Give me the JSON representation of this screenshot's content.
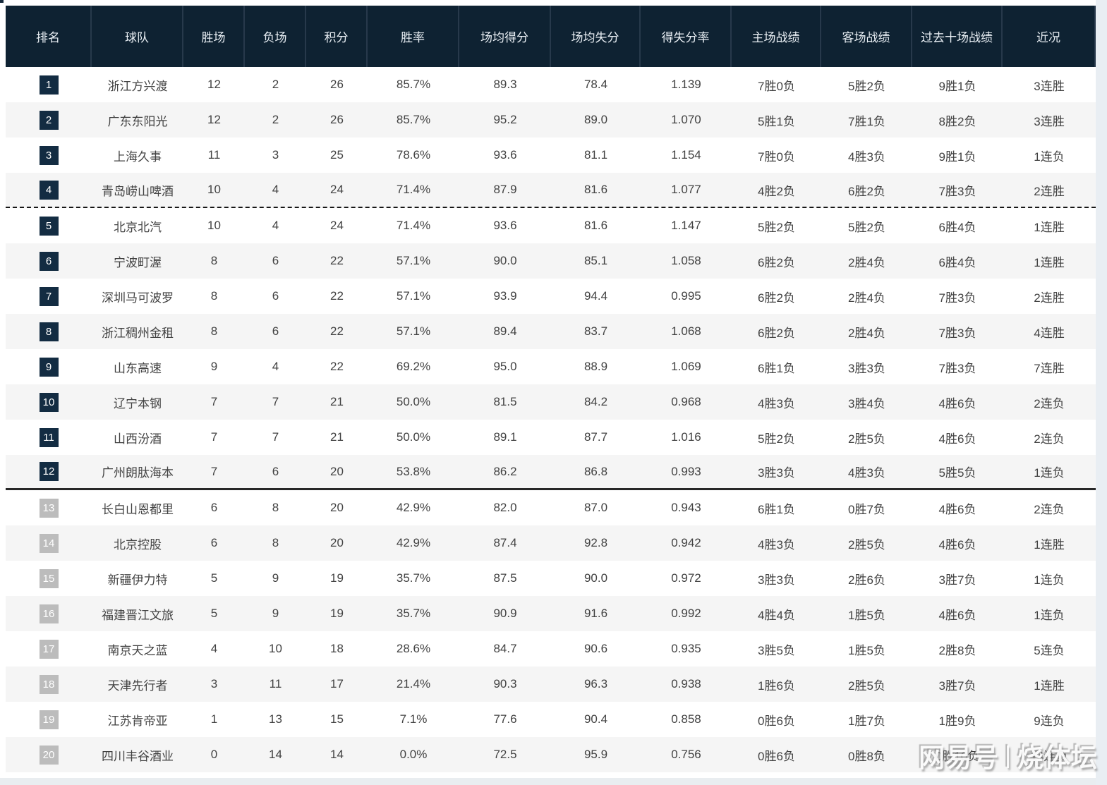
{
  "watermark": {
    "left": "网易号",
    "separator": "|",
    "right": "烧体坛"
  },
  "table": {
    "headers": {
      "rank": "排名",
      "team": "球队",
      "wins": "胜场",
      "losses": "负场",
      "points": "积分",
      "win_rate": "胜率",
      "avg_points_for": "场均得分",
      "avg_points_against": "场均失分",
      "points_ratio": "得失分率",
      "home_record": "主场战绩",
      "away_record": "客场战绩",
      "last_ten_record": "过去十场战绩",
      "recent_form": "近况"
    },
    "colors": {
      "header_bg": "#0e2232",
      "header_divider": "#27394b",
      "badge_dark": "#132c42",
      "badge_gray": "#bcbcbc",
      "row_alt_bg": "#f5f5f5",
      "text": "#424242"
    },
    "separators": {
      "dashed_after_rank": 4,
      "solid_after_rank": 12,
      "gray_badge_from_rank": 13
    },
    "rows": [
      {
        "rank": "1",
        "team": "浙江方兴渡",
        "wins": "12",
        "losses": "2",
        "points": "26",
        "win_rate": "85.7%",
        "avg_points_for": "89.3",
        "avg_points_against": "78.4",
        "points_ratio": "1.139",
        "home_record": "7胜0负",
        "away_record": "5胜2负",
        "last_ten_record": "9胜1负",
        "recent_form": "3连胜"
      },
      {
        "rank": "2",
        "team": "广东东阳光",
        "wins": "12",
        "losses": "2",
        "points": "26",
        "win_rate": "85.7%",
        "avg_points_for": "95.2",
        "avg_points_against": "89.0",
        "points_ratio": "1.070",
        "home_record": "5胜1负",
        "away_record": "7胜1负",
        "last_ten_record": "8胜2负",
        "recent_form": "3连胜"
      },
      {
        "rank": "3",
        "team": "上海久事",
        "wins": "11",
        "losses": "3",
        "points": "25",
        "win_rate": "78.6%",
        "avg_points_for": "93.6",
        "avg_points_against": "81.1",
        "points_ratio": "1.154",
        "home_record": "7胜0负",
        "away_record": "4胜3负",
        "last_ten_record": "9胜1负",
        "recent_form": "1连负"
      },
      {
        "rank": "4",
        "team": "青岛崂山啤酒",
        "wins": "10",
        "losses": "4",
        "points": "24",
        "win_rate": "71.4%",
        "avg_points_for": "87.9",
        "avg_points_against": "81.6",
        "points_ratio": "1.077",
        "home_record": "4胜2负",
        "away_record": "6胜2负",
        "last_ten_record": "7胜3负",
        "recent_form": "2连胜"
      },
      {
        "rank": "5",
        "team": "北京北汽",
        "wins": "10",
        "losses": "4",
        "points": "24",
        "win_rate": "71.4%",
        "avg_points_for": "93.6",
        "avg_points_against": "81.6",
        "points_ratio": "1.147",
        "home_record": "5胜2负",
        "away_record": "5胜2负",
        "last_ten_record": "6胜4负",
        "recent_form": "1连胜"
      },
      {
        "rank": "6",
        "team": "宁波町渥",
        "wins": "8",
        "losses": "6",
        "points": "22",
        "win_rate": "57.1%",
        "avg_points_for": "90.0",
        "avg_points_against": "85.1",
        "points_ratio": "1.058",
        "home_record": "6胜2负",
        "away_record": "2胜4负",
        "last_ten_record": "6胜4负",
        "recent_form": "1连胜"
      },
      {
        "rank": "7",
        "team": "深圳马可波罗",
        "wins": "8",
        "losses": "6",
        "points": "22",
        "win_rate": "57.1%",
        "avg_points_for": "93.9",
        "avg_points_against": "94.4",
        "points_ratio": "0.995",
        "home_record": "6胜2负",
        "away_record": "2胜4负",
        "last_ten_record": "7胜3负",
        "recent_form": "2连胜"
      },
      {
        "rank": "8",
        "team": "浙江稠州金租",
        "wins": "8",
        "losses": "6",
        "points": "22",
        "win_rate": "57.1%",
        "avg_points_for": "89.4",
        "avg_points_against": "83.7",
        "points_ratio": "1.068",
        "home_record": "6胜2负",
        "away_record": "2胜4负",
        "last_ten_record": "7胜3负",
        "recent_form": "4连胜"
      },
      {
        "rank": "9",
        "team": "山东高速",
        "wins": "9",
        "losses": "4",
        "points": "22",
        "win_rate": "69.2%",
        "avg_points_for": "95.0",
        "avg_points_against": "88.9",
        "points_ratio": "1.069",
        "home_record": "6胜1负",
        "away_record": "3胜3负",
        "last_ten_record": "7胜3负",
        "recent_form": "7连胜"
      },
      {
        "rank": "10",
        "team": "辽宁本钢",
        "wins": "7",
        "losses": "7",
        "points": "21",
        "win_rate": "50.0%",
        "avg_points_for": "81.5",
        "avg_points_against": "84.2",
        "points_ratio": "0.968",
        "home_record": "4胜3负",
        "away_record": "3胜4负",
        "last_ten_record": "4胜6负",
        "recent_form": "2连负"
      },
      {
        "rank": "11",
        "team": "山西汾酒",
        "wins": "7",
        "losses": "7",
        "points": "21",
        "win_rate": "50.0%",
        "avg_points_for": "89.1",
        "avg_points_against": "87.7",
        "points_ratio": "1.016",
        "home_record": "5胜2负",
        "away_record": "2胜5负",
        "last_ten_record": "4胜6负",
        "recent_form": "2连负"
      },
      {
        "rank": "12",
        "team": "广州朗肽海本",
        "wins": "7",
        "losses": "6",
        "points": "20",
        "win_rate": "53.8%",
        "avg_points_for": "86.2",
        "avg_points_against": "86.8",
        "points_ratio": "0.993",
        "home_record": "3胜3负",
        "away_record": "4胜3负",
        "last_ten_record": "5胜5负",
        "recent_form": "1连负"
      },
      {
        "rank": "13",
        "team": "长白山恩都里",
        "wins": "6",
        "losses": "8",
        "points": "20",
        "win_rate": "42.9%",
        "avg_points_for": "82.0",
        "avg_points_against": "87.0",
        "points_ratio": "0.943",
        "home_record": "6胜1负",
        "away_record": "0胜7负",
        "last_ten_record": "4胜6负",
        "recent_form": "2连负"
      },
      {
        "rank": "14",
        "team": "北京控股",
        "wins": "6",
        "losses": "8",
        "points": "20",
        "win_rate": "42.9%",
        "avg_points_for": "87.4",
        "avg_points_against": "92.8",
        "points_ratio": "0.942",
        "home_record": "4胜3负",
        "away_record": "2胜5负",
        "last_ten_record": "4胜6负",
        "recent_form": "1连胜"
      },
      {
        "rank": "15",
        "team": "新疆伊力特",
        "wins": "5",
        "losses": "9",
        "points": "19",
        "win_rate": "35.7%",
        "avg_points_for": "87.5",
        "avg_points_against": "90.0",
        "points_ratio": "0.972",
        "home_record": "3胜3负",
        "away_record": "2胜6负",
        "last_ten_record": "3胜7负",
        "recent_form": "1连负"
      },
      {
        "rank": "16",
        "team": "福建晋江文旅",
        "wins": "5",
        "losses": "9",
        "points": "19",
        "win_rate": "35.7%",
        "avg_points_for": "90.9",
        "avg_points_against": "91.6",
        "points_ratio": "0.992",
        "home_record": "4胜4负",
        "away_record": "1胜5负",
        "last_ten_record": "4胜6负",
        "recent_form": "1连负"
      },
      {
        "rank": "17",
        "team": "南京天之蓝",
        "wins": "4",
        "losses": "10",
        "points": "18",
        "win_rate": "28.6%",
        "avg_points_for": "84.7",
        "avg_points_against": "90.6",
        "points_ratio": "0.935",
        "home_record": "3胜5负",
        "away_record": "1胜5负",
        "last_ten_record": "2胜8负",
        "recent_form": "5连负"
      },
      {
        "rank": "18",
        "team": "天津先行者",
        "wins": "3",
        "losses": "11",
        "points": "17",
        "win_rate": "21.4%",
        "avg_points_for": "90.3",
        "avg_points_against": "96.3",
        "points_ratio": "0.938",
        "home_record": "1胜6负",
        "away_record": "2胜5负",
        "last_ten_record": "3胜7负",
        "recent_form": "1连胜"
      },
      {
        "rank": "19",
        "team": "江苏肯帝亚",
        "wins": "1",
        "losses": "13",
        "points": "15",
        "win_rate": "7.1%",
        "avg_points_for": "77.6",
        "avg_points_against": "90.4",
        "points_ratio": "0.858",
        "home_record": "0胜6负",
        "away_record": "1胜7负",
        "last_ten_record": "1胜9负",
        "recent_form": "9连负"
      },
      {
        "rank": "20",
        "team": "四川丰谷酒业",
        "wins": "0",
        "losses": "14",
        "points": "14",
        "win_rate": "0.0%",
        "avg_points_for": "72.5",
        "avg_points_against": "95.9",
        "points_ratio": "0.756",
        "home_record": "0胜6负",
        "away_record": "0胜8负",
        "last_ten_record": "0胜10负",
        "recent_form": "14连负"
      }
    ]
  }
}
